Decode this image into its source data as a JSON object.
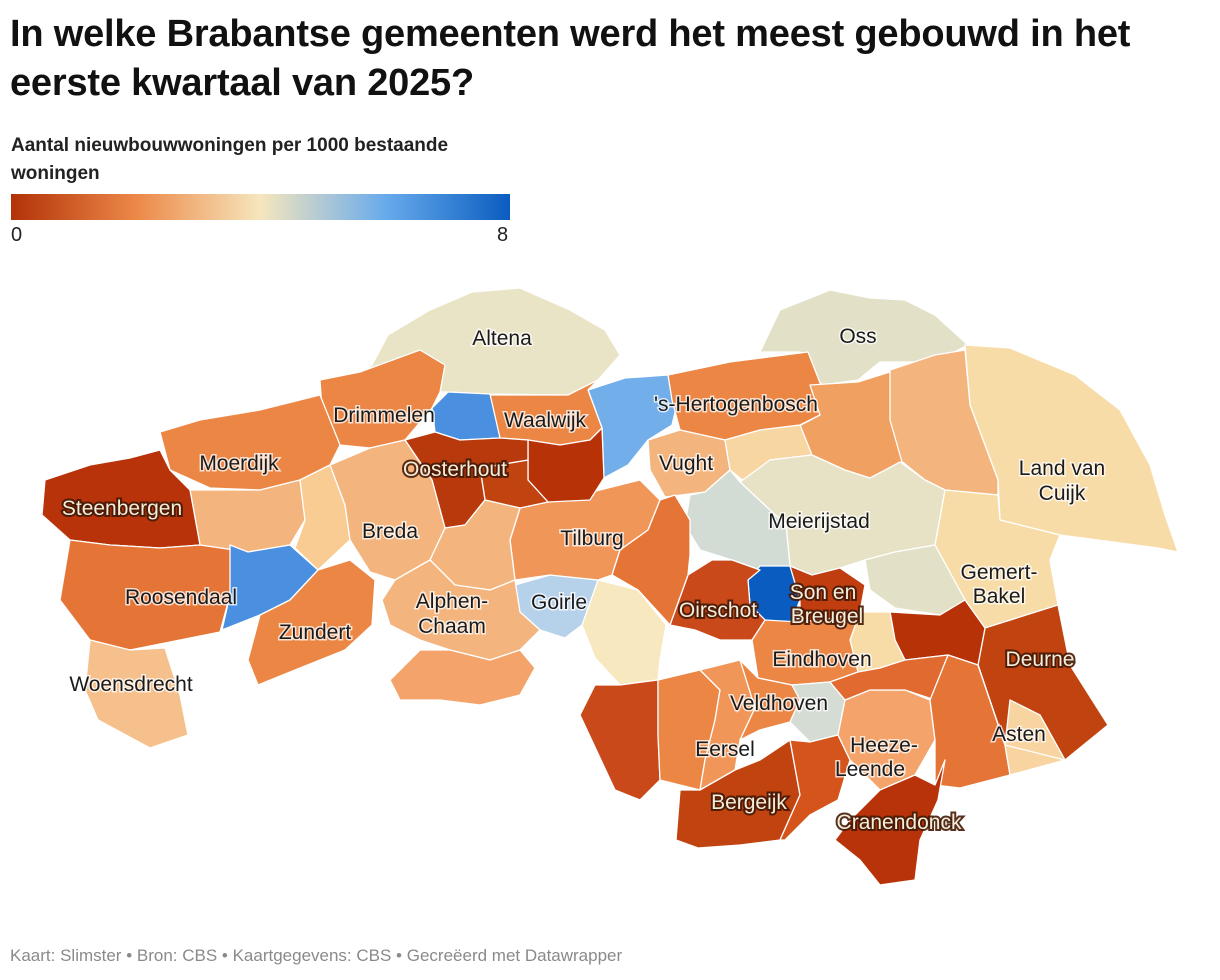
{
  "title": "In welke Brabantse gemeenten werd het meest gebouwd in het eerste kwartaal van 2025?",
  "legend": {
    "title": "Aantal nieuwbouwwoningen per 1000 bestaande woningen",
    "min": "0",
    "max": "8",
    "colors": [
      "#b23208",
      "#ec8848",
      "#f6e6bd",
      "#68abec",
      "#0a5cc0"
    ]
  },
  "labels": {
    "altena": "Altena",
    "oss": "Oss",
    "drimmelen": "Drimmelen",
    "waalwijk": "Waalwijk",
    "hertogenbosch": "'s-Hertogenbosch",
    "moerdijk": "Moerdijk",
    "oosterhout": "Oosterhout",
    "vught": "Vught",
    "land_van_cuijk": [
      "Land van",
      "Cuijk"
    ],
    "steenbergen": "Steenbergen",
    "breda": "Breda",
    "tilburg": "Tilburg",
    "meierijstad": "Meierijstad",
    "gemert_bakel": [
      "Gemert-",
      "Bakel"
    ],
    "roosendaal": "Roosendaal",
    "alphen_chaam": [
      "Alphen-",
      "Chaam"
    ],
    "goirle": "Goirle",
    "son_en_breugel": [
      "Son en",
      "Breugel"
    ],
    "oirschot": "Oirschot",
    "zundert": "Zundert",
    "eindhoven": "Eindhoven",
    "deurne": "Deurne",
    "woensdrecht": "Woensdrecht",
    "veldhoven": "Veldhoven",
    "asten": "Asten",
    "eersel": "Eersel",
    "heeze_leende": [
      "Heeze-",
      "Leende"
    ],
    "bergeijk": "Bergeijk",
    "cranendonck": "Cranendonck"
  },
  "footer": "Kaart: Slimster • Bron: CBS • Kaartgegevens: CBS • Gecreëerd met Datawrapper"
}
